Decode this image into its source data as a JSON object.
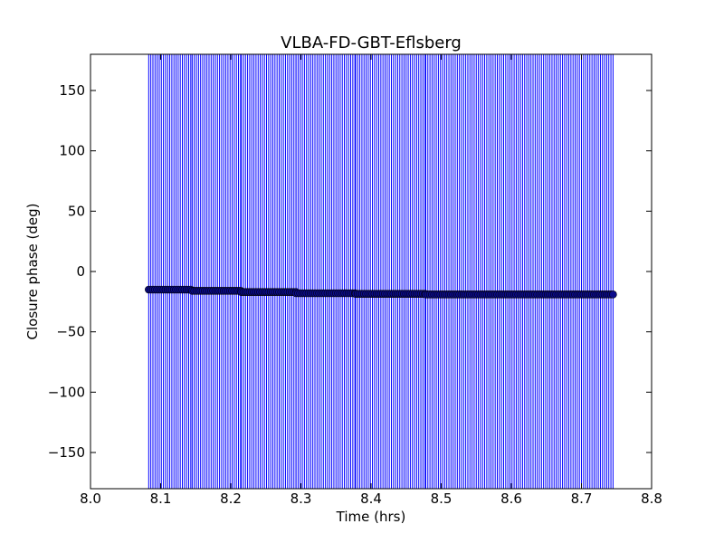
{
  "chart_data": {
    "type": "scatter",
    "title": "VLBA-FD-GBT-Eflsberg",
    "xlabel": "Time (hrs)",
    "ylabel": "Closure phase (deg)",
    "xlim": [
      8.0,
      8.8
    ],
    "ylim": [
      -180,
      180
    ],
    "xticks": [
      8.0,
      8.1,
      8.2,
      8.3,
      8.4,
      8.5,
      8.6,
      8.7,
      8.8
    ],
    "xtick_labels": [
      "8.0",
      "8.1",
      "8.2",
      "8.3",
      "8.4",
      "8.5",
      "8.6",
      "8.7",
      "8.8"
    ],
    "yticks": [
      150,
      100,
      50,
      0,
      -50,
      -100,
      -150
    ],
    "ytick_labels": [
      "150",
      "100",
      "50",
      "0",
      "−50",
      "−100",
      "−150"
    ],
    "grid": false,
    "legend": "none",
    "colors": {
      "marker": "#0b0b8a",
      "errorbar": "#0000ff",
      "axes": "#000000"
    },
    "series": [
      {
        "markers": "filled circles with vertical error bars spanning the full y range",
        "segments": [
          {
            "x_start": 8.083,
            "x_end": 8.145,
            "y": -15
          },
          {
            "x_start": 8.145,
            "x_end": 8.215,
            "y": -16
          },
          {
            "x_start": 8.215,
            "x_end": 8.293,
            "y": -17
          },
          {
            "x_start": 8.293,
            "x_end": 8.378,
            "y": -18
          },
          {
            "x_start": 8.378,
            "x_end": 8.478,
            "y": -18.5
          },
          {
            "x_start": 8.478,
            "x_end": 8.745,
            "y": -19
          }
        ],
        "point_spacing_hrs": 0.003,
        "errorbar": {
          "y_low": -180,
          "y_high": 180
        }
      }
    ]
  }
}
